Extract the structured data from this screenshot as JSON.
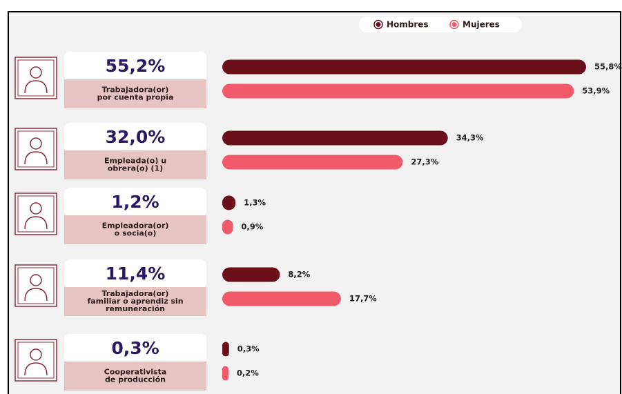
{
  "chart_data": {
    "type": "bar",
    "categories": [
      [
        "Trabajadora(or)",
        "por cuenta propia"
      ],
      [
        "Empleada(o) u",
        "obrera(o) (1)"
      ],
      [
        "Empleadora(or)",
        "o socia(o)"
      ],
      [
        "Trabajadora(or)",
        "familiar o aprendiz sin",
        "remuneración"
      ],
      [
        "Cooperativista",
        "de producción"
      ]
    ],
    "totals": [
      55.2,
      32.0,
      1.2,
      11.4,
      0.3
    ],
    "total_labels": [
      "55,2%",
      "32,0%",
      "1,2%",
      "11,4%",
      "0,3%"
    ],
    "series": [
      {
        "name": "Hombres",
        "color": "#6b0f1a",
        "values": [
          55.8,
          34.3,
          1.3,
          8.2,
          0.3
        ],
        "value_labels": [
          "55,8%",
          "34,3%",
          "1,3%",
          "8,2%",
          "0,3%"
        ]
      },
      {
        "name": "Mujeres",
        "color": "#f05a6a",
        "values": [
          53.9,
          27.3,
          0.9,
          17.7,
          0.2
        ],
        "value_labels": [
          "53,9%",
          "27,3%",
          "0,9%",
          "17,7%",
          "0,2%"
        ]
      }
    ],
    "legend": "top-right"
  }
}
